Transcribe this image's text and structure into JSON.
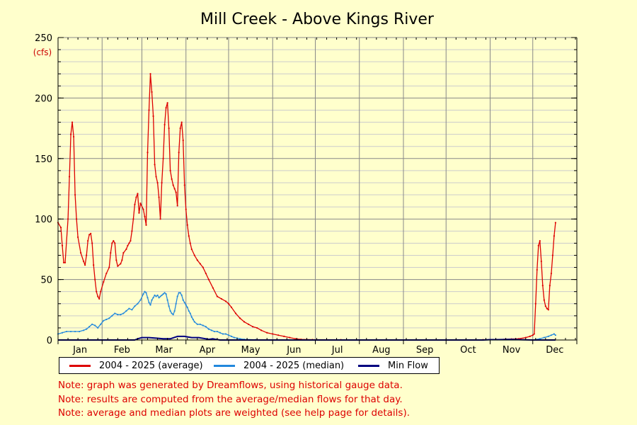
{
  "colors": {
    "background": "#ffffcc",
    "average": "#dd0000",
    "median": "#2288dd",
    "min": "#000080",
    "note": "#dd0000",
    "unit": "#cc0000",
    "grid_major": "#888888",
    "grid_minor": "#cccccc"
  },
  "chart_data": {
    "type": "line",
    "title": "Mill Creek - Above Kings River",
    "ylabel": "(cfs)",
    "xlabel": "",
    "ylim": [
      0,
      250
    ],
    "xlim": [
      1,
      366
    ],
    "y_ticks": [
      0,
      50,
      100,
      150,
      200,
      250
    ],
    "y_tick_labels": [
      "0",
      "50",
      "100",
      "150",
      "200",
      "250"
    ],
    "month_boundaries": [
      1,
      32,
      60,
      91,
      121,
      152,
      182,
      213,
      244,
      274,
      305,
      335,
      366
    ],
    "month_labels": [
      "Jan",
      "Feb",
      "Mar",
      "Apr",
      "May",
      "Jun",
      "Jul",
      "Aug",
      "Sep",
      "Oct",
      "Nov",
      "Dec"
    ],
    "grid": true,
    "x_axis": "day of year",
    "series": [
      {
        "name": "2004 - 2025 (average)",
        "color": "#dd0000",
        "points": [
          [
            1,
            97
          ],
          [
            3,
            93
          ],
          [
            4,
            78
          ],
          [
            5,
            64
          ],
          [
            6,
            64
          ],
          [
            8,
            100
          ],
          [
            9,
            135
          ],
          [
            10,
            170
          ],
          [
            11,
            180
          ],
          [
            12,
            168
          ],
          [
            13,
            120
          ],
          [
            14,
            100
          ],
          [
            15,
            85
          ],
          [
            17,
            72
          ],
          [
            19,
            65
          ],
          [
            20,
            62
          ],
          [
            21,
            70
          ],
          [
            22,
            82
          ],
          [
            23,
            87
          ],
          [
            24,
            88
          ],
          [
            25,
            80
          ],
          [
            26,
            62
          ],
          [
            27,
            50
          ],
          [
            28,
            40
          ],
          [
            29,
            36
          ],
          [
            30,
            34
          ],
          [
            31,
            40
          ],
          [
            33,
            48
          ],
          [
            35,
            55
          ],
          [
            37,
            60
          ],
          [
            38,
            72
          ],
          [
            39,
            80
          ],
          [
            40,
            82
          ],
          [
            41,
            80
          ],
          [
            42,
            66
          ],
          [
            43,
            61
          ],
          [
            45,
            63
          ],
          [
            46,
            66
          ],
          [
            47,
            72
          ],
          [
            49,
            75
          ],
          [
            50,
            78
          ],
          [
            51,
            80
          ],
          [
            52,
            82
          ],
          [
            53,
            90
          ],
          [
            54,
            100
          ],
          [
            55,
            112
          ],
          [
            56,
            118
          ],
          [
            57,
            121
          ],
          [
            58,
            105
          ],
          [
            59,
            113
          ],
          [
            61,
            108
          ],
          [
            62,
            102
          ],
          [
            63,
            95
          ],
          [
            64,
            155
          ],
          [
            65,
            190
          ],
          [
            66,
            220
          ],
          [
            67,
            205
          ],
          [
            68,
            185
          ],
          [
            69,
            145
          ],
          [
            70,
            135
          ],
          [
            71,
            130
          ],
          [
            72,
            118
          ],
          [
            73,
            100
          ],
          [
            74,
            130
          ],
          [
            75,
            150
          ],
          [
            76,
            178
          ],
          [
            77,
            192
          ],
          [
            78,
            196
          ],
          [
            79,
            175
          ],
          [
            80,
            140
          ],
          [
            81,
            133
          ],
          [
            82,
            128
          ],
          [
            83,
            125
          ],
          [
            84,
            122
          ],
          [
            85,
            111
          ],
          [
            86,
            155
          ],
          [
            87,
            175
          ],
          [
            88,
            180
          ],
          [
            89,
            165
          ],
          [
            90,
            128
          ],
          [
            91,
            108
          ],
          [
            92,
            95
          ],
          [
            93,
            86
          ],
          [
            94,
            80
          ],
          [
            95,
            75
          ],
          [
            97,
            70
          ],
          [
            99,
            66
          ],
          [
            101,
            63
          ],
          [
            103,
            60
          ],
          [
            105,
            55
          ],
          [
            107,
            50
          ],
          [
            110,
            43
          ],
          [
            113,
            36
          ],
          [
            116,
            34
          ],
          [
            119,
            32
          ],
          [
            121,
            30
          ],
          [
            123,
            27
          ],
          [
            126,
            22
          ],
          [
            129,
            18
          ],
          [
            132,
            15
          ],
          [
            135,
            13
          ],
          [
            138,
            11
          ],
          [
            141,
            10
          ],
          [
            144,
            8
          ],
          [
            148,
            6
          ],
          [
            152,
            5
          ],
          [
            156,
            4
          ],
          [
            160,
            3
          ],
          [
            164,
            2
          ],
          [
            168,
            1
          ],
          [
            172,
            0.5
          ],
          [
            180,
            0.3
          ],
          [
            200,
            0.2
          ],
          [
            300,
            0.2
          ],
          [
            310,
            0.3
          ],
          [
            315,
            0.5
          ],
          [
            320,
            0.8
          ],
          [
            325,
            1
          ],
          [
            330,
            2
          ],
          [
            333,
            3
          ],
          [
            335,
            4
          ],
          [
            336,
            5
          ],
          [
            337,
            30
          ],
          [
            338,
            58
          ],
          [
            339,
            78
          ],
          [
            340,
            82
          ],
          [
            341,
            65
          ],
          [
            342,
            45
          ],
          [
            343,
            33
          ],
          [
            344,
            28
          ],
          [
            345,
            26
          ],
          [
            346,
            25
          ],
          [
            347,
            45
          ],
          [
            348,
            55
          ],
          [
            349,
            70
          ],
          [
            350,
            86
          ],
          [
            351,
            97
          ]
        ]
      },
      {
        "name": "2004 - 2025 (median)",
        "color": "#2288dd",
        "points": [
          [
            1,
            5
          ],
          [
            4,
            6
          ],
          [
            7,
            7
          ],
          [
            10,
            7
          ],
          [
            13,
            7
          ],
          [
            16,
            7
          ],
          [
            19,
            8
          ],
          [
            21,
            9
          ],
          [
            23,
            11
          ],
          [
            25,
            13
          ],
          [
            27,
            12
          ],
          [
            29,
            10
          ],
          [
            31,
            13
          ],
          [
            33,
            16
          ],
          [
            35,
            17
          ],
          [
            37,
            18
          ],
          [
            39,
            20
          ],
          [
            41,
            22
          ],
          [
            43,
            21
          ],
          [
            45,
            21
          ],
          [
            47,
            22
          ],
          [
            49,
            24
          ],
          [
            51,
            26
          ],
          [
            53,
            25
          ],
          [
            55,
            28
          ],
          [
            57,
            30
          ],
          [
            59,
            33
          ],
          [
            61,
            38
          ],
          [
            62,
            40
          ],
          [
            63,
            39
          ],
          [
            64,
            35
          ],
          [
            65,
            31
          ],
          [
            66,
            29
          ],
          [
            67,
            33
          ],
          [
            68,
            35
          ],
          [
            69,
            37
          ],
          [
            70,
            36
          ],
          [
            71,
            37
          ],
          [
            72,
            35
          ],
          [
            73,
            36
          ],
          [
            74,
            37
          ],
          [
            75,
            38
          ],
          [
            76,
            39
          ],
          [
            77,
            38
          ],
          [
            78,
            33
          ],
          [
            79,
            28
          ],
          [
            80,
            24
          ],
          [
            81,
            22
          ],
          [
            82,
            21
          ],
          [
            83,
            24
          ],
          [
            84,
            30
          ],
          [
            85,
            36
          ],
          [
            86,
            39
          ],
          [
            87,
            39
          ],
          [
            88,
            37
          ],
          [
            89,
            33
          ],
          [
            90,
            31
          ],
          [
            91,
            29
          ],
          [
            92,
            27
          ],
          [
            93,
            24
          ],
          [
            94,
            22
          ],
          [
            95,
            19
          ],
          [
            96,
            17
          ],
          [
            97,
            15
          ],
          [
            99,
            13
          ],
          [
            101,
            13
          ],
          [
            103,
            12
          ],
          [
            105,
            11
          ],
          [
            107,
            9
          ],
          [
            109,
            8
          ],
          [
            111,
            7
          ],
          [
            113,
            7
          ],
          [
            115,
            6
          ],
          [
            117,
            5
          ],
          [
            119,
            5
          ],
          [
            121,
            4
          ],
          [
            123,
            3
          ],
          [
            125,
            2
          ],
          [
            127,
            1.5
          ],
          [
            129,
            1
          ],
          [
            132,
            0.5
          ],
          [
            140,
            0.2
          ],
          [
            150,
            0
          ],
          [
            300,
            0
          ],
          [
            335,
            0
          ],
          [
            340,
            1
          ],
          [
            343,
            2
          ],
          [
            346,
            3
          ],
          [
            348,
            4
          ],
          [
            350,
            5
          ],
          [
            351,
            4
          ]
        ]
      },
      {
        "name": "Min Flow",
        "color": "#000080",
        "points": [
          [
            1,
            0
          ],
          [
            55,
            0
          ],
          [
            57,
            1
          ],
          [
            60,
            2
          ],
          [
            65,
            2
          ],
          [
            70,
            1.5
          ],
          [
            75,
            1
          ],
          [
            80,
            1
          ],
          [
            85,
            3
          ],
          [
            90,
            3
          ],
          [
            95,
            2
          ],
          [
            100,
            2
          ],
          [
            105,
            1
          ],
          [
            107,
            0.5
          ],
          [
            110,
            1
          ],
          [
            112,
            0.5
          ],
          [
            115,
            0
          ],
          [
            160,
            0
          ],
          [
            200,
            0
          ],
          [
            300,
            0
          ],
          [
            305,
            0.3
          ],
          [
            310,
            0.3
          ],
          [
            320,
            0.5
          ],
          [
            325,
            0.3
          ],
          [
            335,
            0
          ],
          [
            351,
            0
          ]
        ]
      }
    ],
    "legend_position": "bottom"
  },
  "legend": [
    {
      "label": "2004 - 2025 (average)",
      "color": "#dd0000"
    },
    {
      "label": "2004 - 2025 (median)",
      "color": "#2288dd"
    },
    {
      "label": "Min Flow",
      "color": "#000080"
    }
  ],
  "notes": [
    "Note: graph was generated by Dreamflows, using historical gauge data.",
    "Note: results are computed from the average/median flows for that day.",
    "Note: average and median plots are weighted (see help page for details)."
  ]
}
